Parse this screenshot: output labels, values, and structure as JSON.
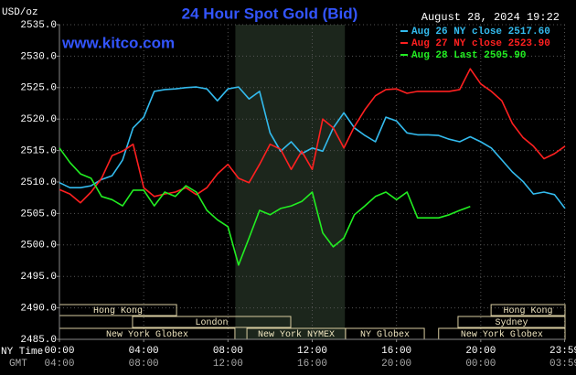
{
  "chart_data": {
    "type": "line",
    "title": "24 Hour Spot Gold (Bid)",
    "unit_label": "USD/oz",
    "timestamp": "August 28, 2024 19:22",
    "watermark": "www.kitco.com",
    "x_label_primary": "NY Time",
    "x_label_secondary": "GMT",
    "x": [
      0,
      0.5,
      1,
      1.5,
      2,
      2.5,
      3,
      3.5,
      4,
      4.5,
      5,
      5.5,
      6,
      6.5,
      7,
      7.5,
      8,
      8.5,
      9,
      9.5,
      10,
      10.5,
      11,
      11.5,
      12,
      12.5,
      13,
      13.5,
      14,
      14.5,
      15,
      15.5,
      16,
      16.5,
      17,
      17.5,
      18,
      18.5,
      19,
      19.5,
      20,
      20.5,
      21,
      21.5,
      22,
      22.5,
      23,
      23.5,
      24
    ],
    "series": [
      {
        "name": "Aug 26 NY close 2517.60",
        "color": "#33bbee",
        "values": [
          2509.9,
          2509.1,
          2509.1,
          2509.4,
          2510.4,
          2511.0,
          2513.5,
          2518.6,
          2520.3,
          2524.4,
          2524.7,
          2524.8,
          2525.0,
          2525.1,
          2524.8,
          2522.9,
          2524.8,
          2525.1,
          2523.2,
          2524.4,
          2517.8,
          2514.9,
          2516.4,
          2514.5,
          2515.4,
          2514.9,
          2518.6,
          2521.0,
          2518.6,
          2517.4,
          2516.4,
          2520.3,
          2519.7,
          2517.8,
          2517.5,
          2517.5,
          2517.4,
          2516.8,
          2516.4,
          2517.2,
          2516.4,
          2515.4,
          2513.5,
          2511.6,
          2510.1,
          2508.1,
          2508.4,
          2508.0,
          2505.8
        ]
      },
      {
        "name": "Aug 27 NY close 2523.90",
        "color": "#ff2020",
        "values": [
          2508.8,
          2508.1,
          2506.7,
          2508.4,
          2510.6,
          2514.2,
          2514.9,
          2516.0,
          2509.1,
          2507.7,
          2508.1,
          2508.4,
          2509.1,
          2508.0,
          2509.1,
          2511.3,
          2512.8,
          2510.6,
          2509.9,
          2512.8,
          2516.0,
          2515.2,
          2512.0,
          2514.9,
          2512.0,
          2520.0,
          2518.6,
          2515.4,
          2518.8,
          2521.5,
          2523.7,
          2524.7,
          2524.8,
          2524.1,
          2524.4,
          2524.4,
          2524.4,
          2524.4,
          2524.7,
          2528.0,
          2525.6,
          2524.4,
          2522.9,
          2519.3,
          2517.1,
          2515.7,
          2513.7,
          2514.5,
          2515.7
        ]
      },
      {
        "name": "Aug 28 Last 2505.90",
        "color": "#22ee22",
        "values": [
          2515.4,
          2513.1,
          2511.3,
          2510.6,
          2507.7,
          2507.2,
          2506.2,
          2508.7,
          2508.7,
          2506.2,
          2508.4,
          2507.7,
          2509.4,
          2508.4,
          2505.5,
          2504.0,
          2502.9,
          2496.8,
          2501.1,
          2505.5,
          2504.8,
          2505.8,
          2506.2,
          2506.9,
          2508.4,
          2501.9,
          2499.7,
          2501.1,
          2504.8,
          2506.2,
          2507.7,
          2508.4,
          2507.2,
          2508.4,
          2504.3,
          2504.3,
          2504.3,
          2504.8,
          2505.5,
          2506.1,
          null,
          null,
          null,
          null,
          null,
          null,
          null,
          null,
          null
        ]
      }
    ],
    "xlim": [
      0,
      24
    ],
    "xticks": [
      {
        "value": 0,
        "label": "00:00"
      },
      {
        "value": 4,
        "label": "04:00"
      },
      {
        "value": 8,
        "label": "08:00"
      },
      {
        "value": 12,
        "label": "12:00"
      },
      {
        "value": 16,
        "label": "16:00"
      },
      {
        "value": 20,
        "label": "20:00"
      },
      {
        "value": 23.98,
        "label": "23:59"
      }
    ],
    "x2ticks": [
      {
        "value": 0,
        "label": "04:00"
      },
      {
        "value": 4,
        "label": "08:00"
      },
      {
        "value": 8,
        "label": "12:00"
      },
      {
        "value": 12,
        "label": "16:00"
      },
      {
        "value": 16,
        "label": "20:00"
      },
      {
        "value": 20,
        "label": "00:00"
      },
      {
        "value": 23.98,
        "label": "03:59"
      }
    ],
    "ylim": [
      2485,
      2535
    ],
    "yticks": [
      {
        "value": 2485,
        "label": "2485.0"
      },
      {
        "value": 2490,
        "label": "2490.0"
      },
      {
        "value": 2495,
        "label": "2495.0"
      },
      {
        "value": 2500,
        "label": "2500.0"
      },
      {
        "value": 2505,
        "label": "2505.0"
      },
      {
        "value": 2510,
        "label": "2510.0"
      },
      {
        "value": 2515,
        "label": "2515.0"
      },
      {
        "value": 2520,
        "label": "2520.0"
      },
      {
        "value": 2525,
        "label": "2525.0"
      },
      {
        "value": 2530,
        "label": "2530.0"
      },
      {
        "value": 2535,
        "label": "2535.0"
      }
    ],
    "grid": true,
    "legend": "top-right",
    "shade": [
      8.35,
      13.55
    ],
    "sessions": [
      {
        "label": "Hong Kong",
        "start": 0,
        "end": 5.56,
        "row": 2
      },
      {
        "label": "London",
        "start": 3.47,
        "end": 10.98,
        "row": 1
      },
      {
        "label": "New York Globex",
        "start": 0,
        "end": 8.33,
        "row": 0
      },
      {
        "label": "New York NYMEX",
        "start": 8.9,
        "end": 13.58,
        "row": 0
      },
      {
        "label": "NY Globex",
        "start": 13.58,
        "end": 17.32,
        "row": 0
      },
      {
        "label": "Hong Kong",
        "start": 20.49,
        "end": 24,
        "row": 2
      },
      {
        "label": "Sydney",
        "start": 18.92,
        "end": 24,
        "row": 1
      },
      {
        "label": "New York Globex",
        "start": 18.0,
        "end": 24,
        "row": 0
      }
    ]
  }
}
